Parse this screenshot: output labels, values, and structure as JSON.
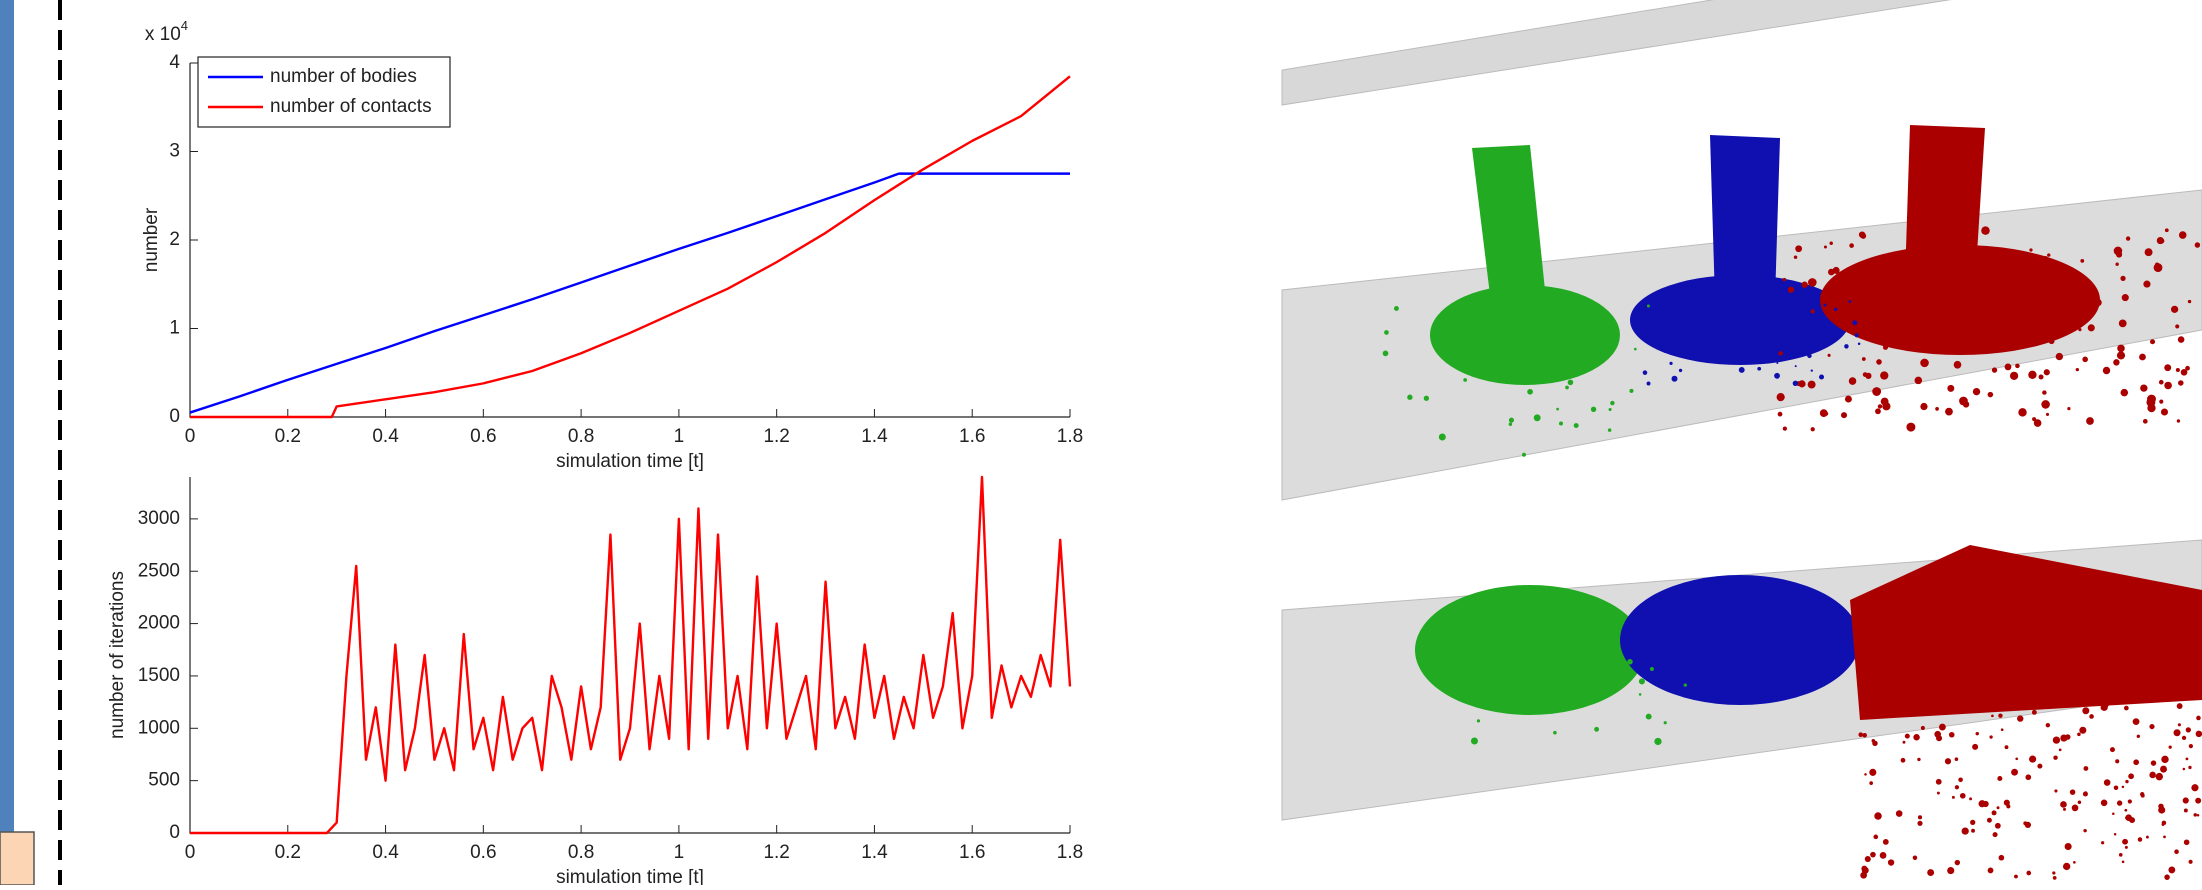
{
  "chart_data": [
    {
      "type": "line",
      "y_label": "number",
      "x_label": "simulation time [t]",
      "y_multiplier": "x 10",
      "y_multiplier_exponent": "4",
      "xlim": [
        0,
        1.8
      ],
      "xticks": [
        0,
        0.2,
        0.4,
        0.6,
        0.8,
        1,
        1.2,
        1.4,
        1.6,
        1.8
      ],
      "ylim": [
        0,
        40000
      ],
      "yticks": [
        0,
        {
          "value": 10000,
          "label": "1"
        },
        {
          "value": 20000,
          "label": "2"
        },
        {
          "value": 30000,
          "label": "3"
        },
        {
          "value": 40000,
          "label": "4"
        }
      ],
      "legend": "upper left",
      "series": [
        {
          "name": "number of bodies",
          "color": "#0000ff",
          "x": [
            0,
            0.1,
            0.2,
            0.3,
            0.4,
            0.5,
            0.6,
            0.7,
            0.8,
            0.9,
            1,
            1.1,
            1.2,
            1.3,
            1.4,
            1.45,
            1.5,
            1.6,
            1.7,
            1.8
          ],
          "values": [
            500,
            2300,
            4200,
            6000,
            7800,
            9700,
            11500,
            13300,
            15200,
            17100,
            19000,
            20800,
            22700,
            24600,
            26500,
            27500,
            27500,
            27500,
            27500,
            27500
          ]
        },
        {
          "name": "number of contacts",
          "color": "#ff0000",
          "x": [
            0,
            0.1,
            0.2,
            0.29,
            0.3,
            0.4,
            0.5,
            0.6,
            0.7,
            0.8,
            0.9,
            1,
            1.1,
            1.2,
            1.3,
            1.4,
            1.5,
            1.6,
            1.7,
            1.8
          ],
          "values": [
            0,
            0,
            0,
            0,
            1200,
            2000,
            2800,
            3800,
            5200,
            7200,
            9500,
            12000,
            14500,
            17500,
            20800,
            24500,
            28000,
            31200,
            34000,
            38500
          ]
        }
      ]
    },
    {
      "type": "line",
      "y_label": "number of iterations",
      "x_label": "simulation time [t]",
      "xlim": [
        0,
        1.8
      ],
      "xticks": [
        0,
        0.2,
        0.4,
        0.6,
        0.8,
        1,
        1.2,
        1.4,
        1.6,
        1.8
      ],
      "ylim": [
        0,
        3400
      ],
      "yticks": [
        0,
        500,
        1000,
        1500,
        2000,
        2500,
        3000
      ],
      "series": [
        {
          "color": "#ff0000",
          "x": [
            0,
            0.28,
            0.3,
            0.32,
            0.34,
            0.36,
            0.38,
            0.4,
            0.42,
            0.44,
            0.46,
            0.48,
            0.5,
            0.52,
            0.54,
            0.56,
            0.58,
            0.6,
            0.62,
            0.64,
            0.66,
            0.68,
            0.7,
            0.72,
            0.74,
            0.76,
            0.78,
            0.8,
            0.82,
            0.84,
            0.86,
            0.88,
            0.9,
            0.92,
            0.94,
            0.96,
            0.98,
            1,
            1.02,
            1.04,
            1.06,
            1.08,
            1.1,
            1.12,
            1.14,
            1.16,
            1.18,
            1.2,
            1.22,
            1.24,
            1.26,
            1.28,
            1.3,
            1.32,
            1.34,
            1.36,
            1.38,
            1.4,
            1.42,
            1.44,
            1.46,
            1.48,
            1.5,
            1.52,
            1.54,
            1.56,
            1.58,
            1.6,
            1.62,
            1.64,
            1.66,
            1.68,
            1.7,
            1.72,
            1.74,
            1.76,
            1.78,
            1.8
          ],
          "values": [
            0,
            0,
            100,
            1500,
            2550,
            700,
            1200,
            500,
            1800,
            600,
            1000,
            1700,
            700,
            1000,
            600,
            1900,
            800,
            1100,
            600,
            1300,
            700,
            1000,
            1100,
            600,
            1500,
            1200,
            700,
            1400,
            800,
            1200,
            2850,
            700,
            1000,
            2000,
            800,
            1500,
            900,
            3000,
            800,
            3100,
            900,
            2850,
            1000,
            1500,
            800,
            2450,
            1000,
            2000,
            900,
            1200,
            1500,
            800,
            2400,
            1000,
            1300,
            900,
            1800,
            1100,
            1500,
            900,
            1300,
            1000,
            1700,
            1100,
            1400,
            2100,
            1000,
            1500,
            3400,
            1100,
            1600,
            1200,
            1500,
            1300,
            1700,
            1400,
            2800,
            1400
          ]
        }
      ]
    }
  ]
}
